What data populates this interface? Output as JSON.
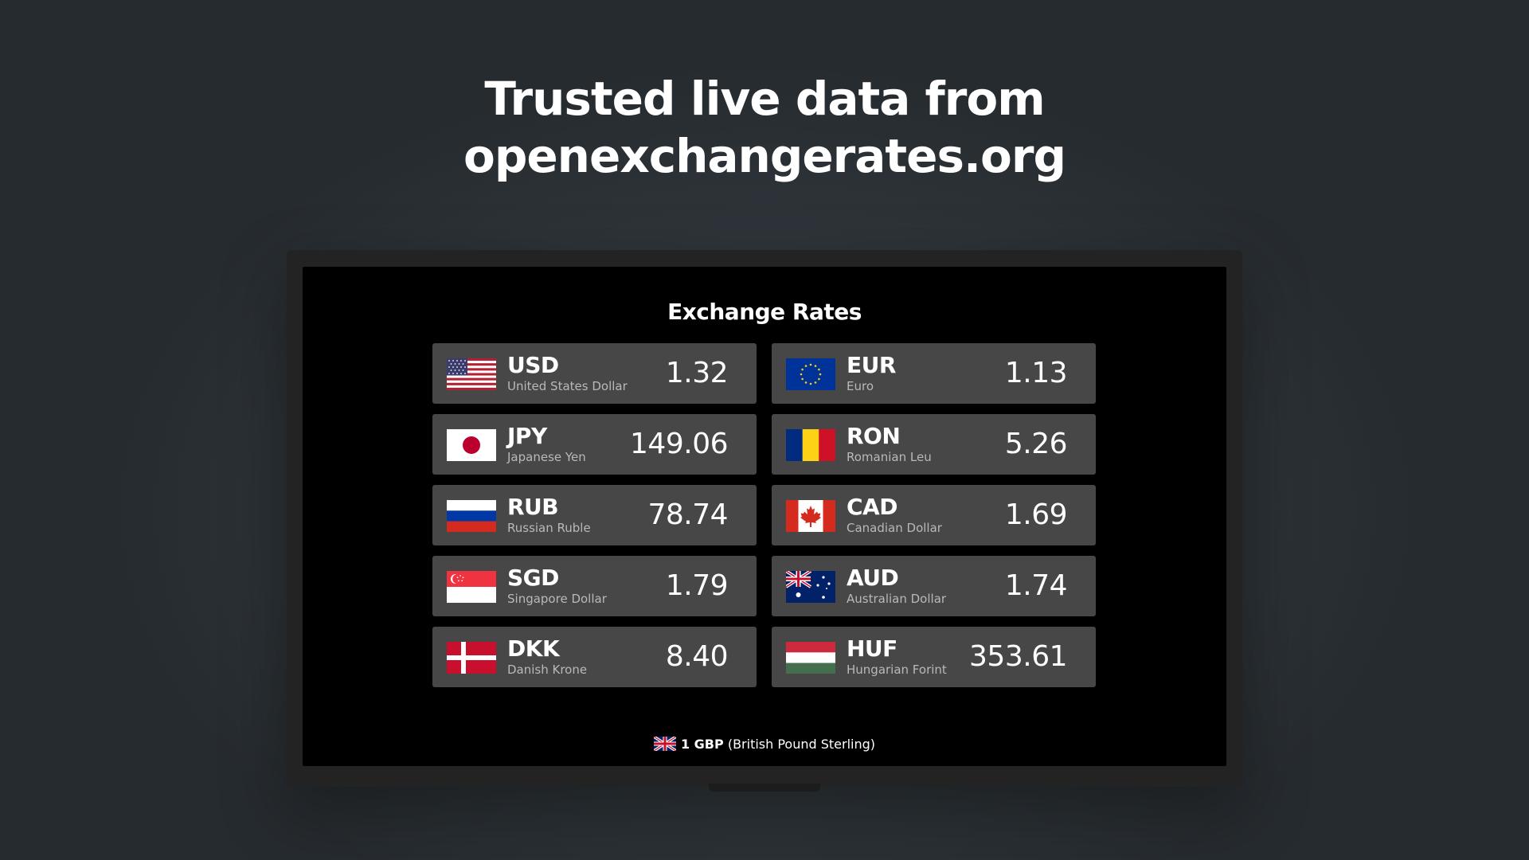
{
  "headline": {
    "line1": "Trusted live data from",
    "line2": "openexchangerates.org"
  },
  "screen": {
    "title": "Exchange Rates",
    "rates": [
      {
        "code": "USD",
        "name": "United States Dollar",
        "value": "1.32",
        "flag_icon": "us-flag-icon"
      },
      {
        "code": "EUR",
        "name": "Euro",
        "value": "1.13",
        "flag_icon": "eu-flag-icon"
      },
      {
        "code": "JPY",
        "name": "Japanese Yen",
        "value": "149.06",
        "flag_icon": "jp-flag-icon"
      },
      {
        "code": "RON",
        "name": "Romanian Leu",
        "value": "5.26",
        "flag_icon": "ro-flag-icon"
      },
      {
        "code": "RUB",
        "name": "Russian Ruble",
        "value": "78.74",
        "flag_icon": "ru-flag-icon"
      },
      {
        "code": "CAD",
        "name": "Canadian Dollar",
        "value": "1.69",
        "flag_icon": "ca-flag-icon"
      },
      {
        "code": "SGD",
        "name": "Singapore Dollar",
        "value": "1.79",
        "flag_icon": "sg-flag-icon"
      },
      {
        "code": "AUD",
        "name": "Australian Dollar",
        "value": "1.74",
        "flag_icon": "au-flag-icon"
      },
      {
        "code": "DKK",
        "name": "Danish Krone",
        "value": "8.40",
        "flag_icon": "dk-flag-icon"
      },
      {
        "code": "HUF",
        "name": "Hungarian Forint",
        "value": "353.61",
        "flag_icon": "hu-flag-icon"
      }
    ],
    "base": {
      "code": "1 GBP",
      "name": "(British Pound Sterling)",
      "flag_icon": "gb-flag-icon"
    }
  },
  "colors": {
    "background": "#2f363b",
    "screen": "#000000",
    "card": "#474747",
    "text_primary": "#ffffff",
    "text_secondary": "#b9b9b9"
  }
}
